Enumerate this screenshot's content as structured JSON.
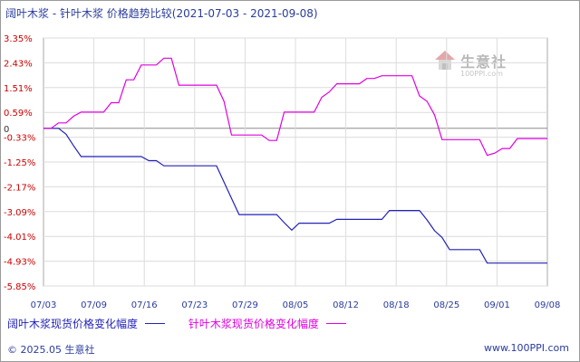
{
  "title": "阔叶木浆 - 针叶木浆 价格趋势比较(2021-07-03 - 2021-09-08)",
  "footer": {
    "copyright": "© 2025.05 生意社",
    "url": "www.100PPI.com"
  },
  "watermark": {
    "text": "生意社",
    "url": "100PPI.com"
  },
  "chart_data": {
    "type": "line",
    "title": "阔叶木浆 - 针叶木浆 价格趋势比较(2021-07-03 - 2021-09-08)",
    "xlabel": "",
    "ylabel": "",
    "x_ticks": [
      "07/03",
      "07/09",
      "07/16",
      "07/23",
      "07/29",
      "08/05",
      "08/12",
      "08/18",
      "08/25",
      "09/01",
      "09/08"
    ],
    "y_ticks": [
      "3.35%",
      "2.43%",
      "1.51%",
      "0.59%",
      "0",
      "-0.33%",
      "-1.25%",
      "-2.17%",
      "-3.09%",
      "-4.01%",
      "-4.93%",
      "-5.85%"
    ],
    "ylim": [
      -5.85,
      3.35
    ],
    "xlim": [
      "2021-07-03",
      "2021-09-08"
    ],
    "grid": true,
    "legend_position": "bottom",
    "series": [
      {
        "name": "阔叶木浆现货价格变化幅度",
        "color": "#2222b8",
        "points": [
          [
            "2021-07-03",
            0
          ],
          [
            "2021-07-05",
            0
          ],
          [
            "2021-07-06",
            -0.22
          ],
          [
            "2021-07-07",
            -0.65
          ],
          [
            "2021-07-08",
            -1.05
          ],
          [
            "2021-07-16",
            -1.05
          ],
          [
            "2021-07-17",
            -1.2
          ],
          [
            "2021-07-18",
            -1.2
          ],
          [
            "2021-07-19",
            -1.39
          ],
          [
            "2021-07-26",
            -1.39
          ],
          [
            "2021-07-27",
            -2.0
          ],
          [
            "2021-07-28",
            -2.6
          ],
          [
            "2021-07-29",
            -3.2
          ],
          [
            "2021-08-03",
            -3.2
          ],
          [
            "2021-08-04",
            -3.5
          ],
          [
            "2021-08-05",
            -3.78
          ],
          [
            "2021-08-06",
            -3.52
          ],
          [
            "2021-08-10",
            -3.52
          ],
          [
            "2021-08-11",
            -3.38
          ],
          [
            "2021-08-17",
            -3.38
          ],
          [
            "2021-08-18",
            -3.05
          ],
          [
            "2021-08-22",
            -3.05
          ],
          [
            "2021-08-23",
            -3.4
          ],
          [
            "2021-08-24",
            -3.8
          ],
          [
            "2021-08-25",
            -4.05
          ],
          [
            "2021-08-26",
            -4.5
          ],
          [
            "2021-08-30",
            -4.5
          ],
          [
            "2021-08-31",
            -5.0
          ],
          [
            "2021-09-08",
            -5.0
          ]
        ]
      },
      {
        "name": "针叶木浆现货价格变化幅度",
        "color": "#e000e0",
        "points": [
          [
            "2021-07-03",
            0
          ],
          [
            "2021-07-04",
            0
          ],
          [
            "2021-07-05",
            0.2
          ],
          [
            "2021-07-06",
            0.2
          ],
          [
            "2021-07-07",
            0.45
          ],
          [
            "2021-07-08",
            0.6
          ],
          [
            "2021-07-11",
            0.6
          ],
          [
            "2021-07-12",
            0.95
          ],
          [
            "2021-07-13",
            0.95
          ],
          [
            "2021-07-14",
            1.8
          ],
          [
            "2021-07-15",
            1.8
          ],
          [
            "2021-07-16",
            2.35
          ],
          [
            "2021-07-18",
            2.35
          ],
          [
            "2021-07-19",
            2.6
          ],
          [
            "2021-07-20",
            2.6
          ],
          [
            "2021-07-21",
            1.6
          ],
          [
            "2021-07-26",
            1.6
          ],
          [
            "2021-07-27",
            1.0
          ],
          [
            "2021-07-28",
            -0.25
          ],
          [
            "2021-08-01",
            -0.25
          ],
          [
            "2021-08-02",
            -0.45
          ],
          [
            "2021-08-03",
            -0.45
          ],
          [
            "2021-08-04",
            0.6
          ],
          [
            "2021-08-08",
            0.6
          ],
          [
            "2021-08-09",
            1.15
          ],
          [
            "2021-08-10",
            1.35
          ],
          [
            "2021-08-11",
            1.65
          ],
          [
            "2021-08-14",
            1.65
          ],
          [
            "2021-08-15",
            1.85
          ],
          [
            "2021-08-16",
            1.85
          ],
          [
            "2021-08-17",
            1.95
          ],
          [
            "2021-08-21",
            1.95
          ],
          [
            "2021-08-22",
            1.2
          ],
          [
            "2021-08-23",
            1.0
          ],
          [
            "2021-08-24",
            0.5
          ],
          [
            "2021-08-25",
            -0.42
          ],
          [
            "2021-08-30",
            -0.42
          ],
          [
            "2021-08-31",
            -1.0
          ],
          [
            "2021-09-01",
            -0.92
          ],
          [
            "2021-09-02",
            -0.75
          ],
          [
            "2021-09-03",
            -0.75
          ],
          [
            "2021-09-04",
            -0.38
          ],
          [
            "2021-09-08",
            -0.38
          ]
        ]
      }
    ]
  }
}
